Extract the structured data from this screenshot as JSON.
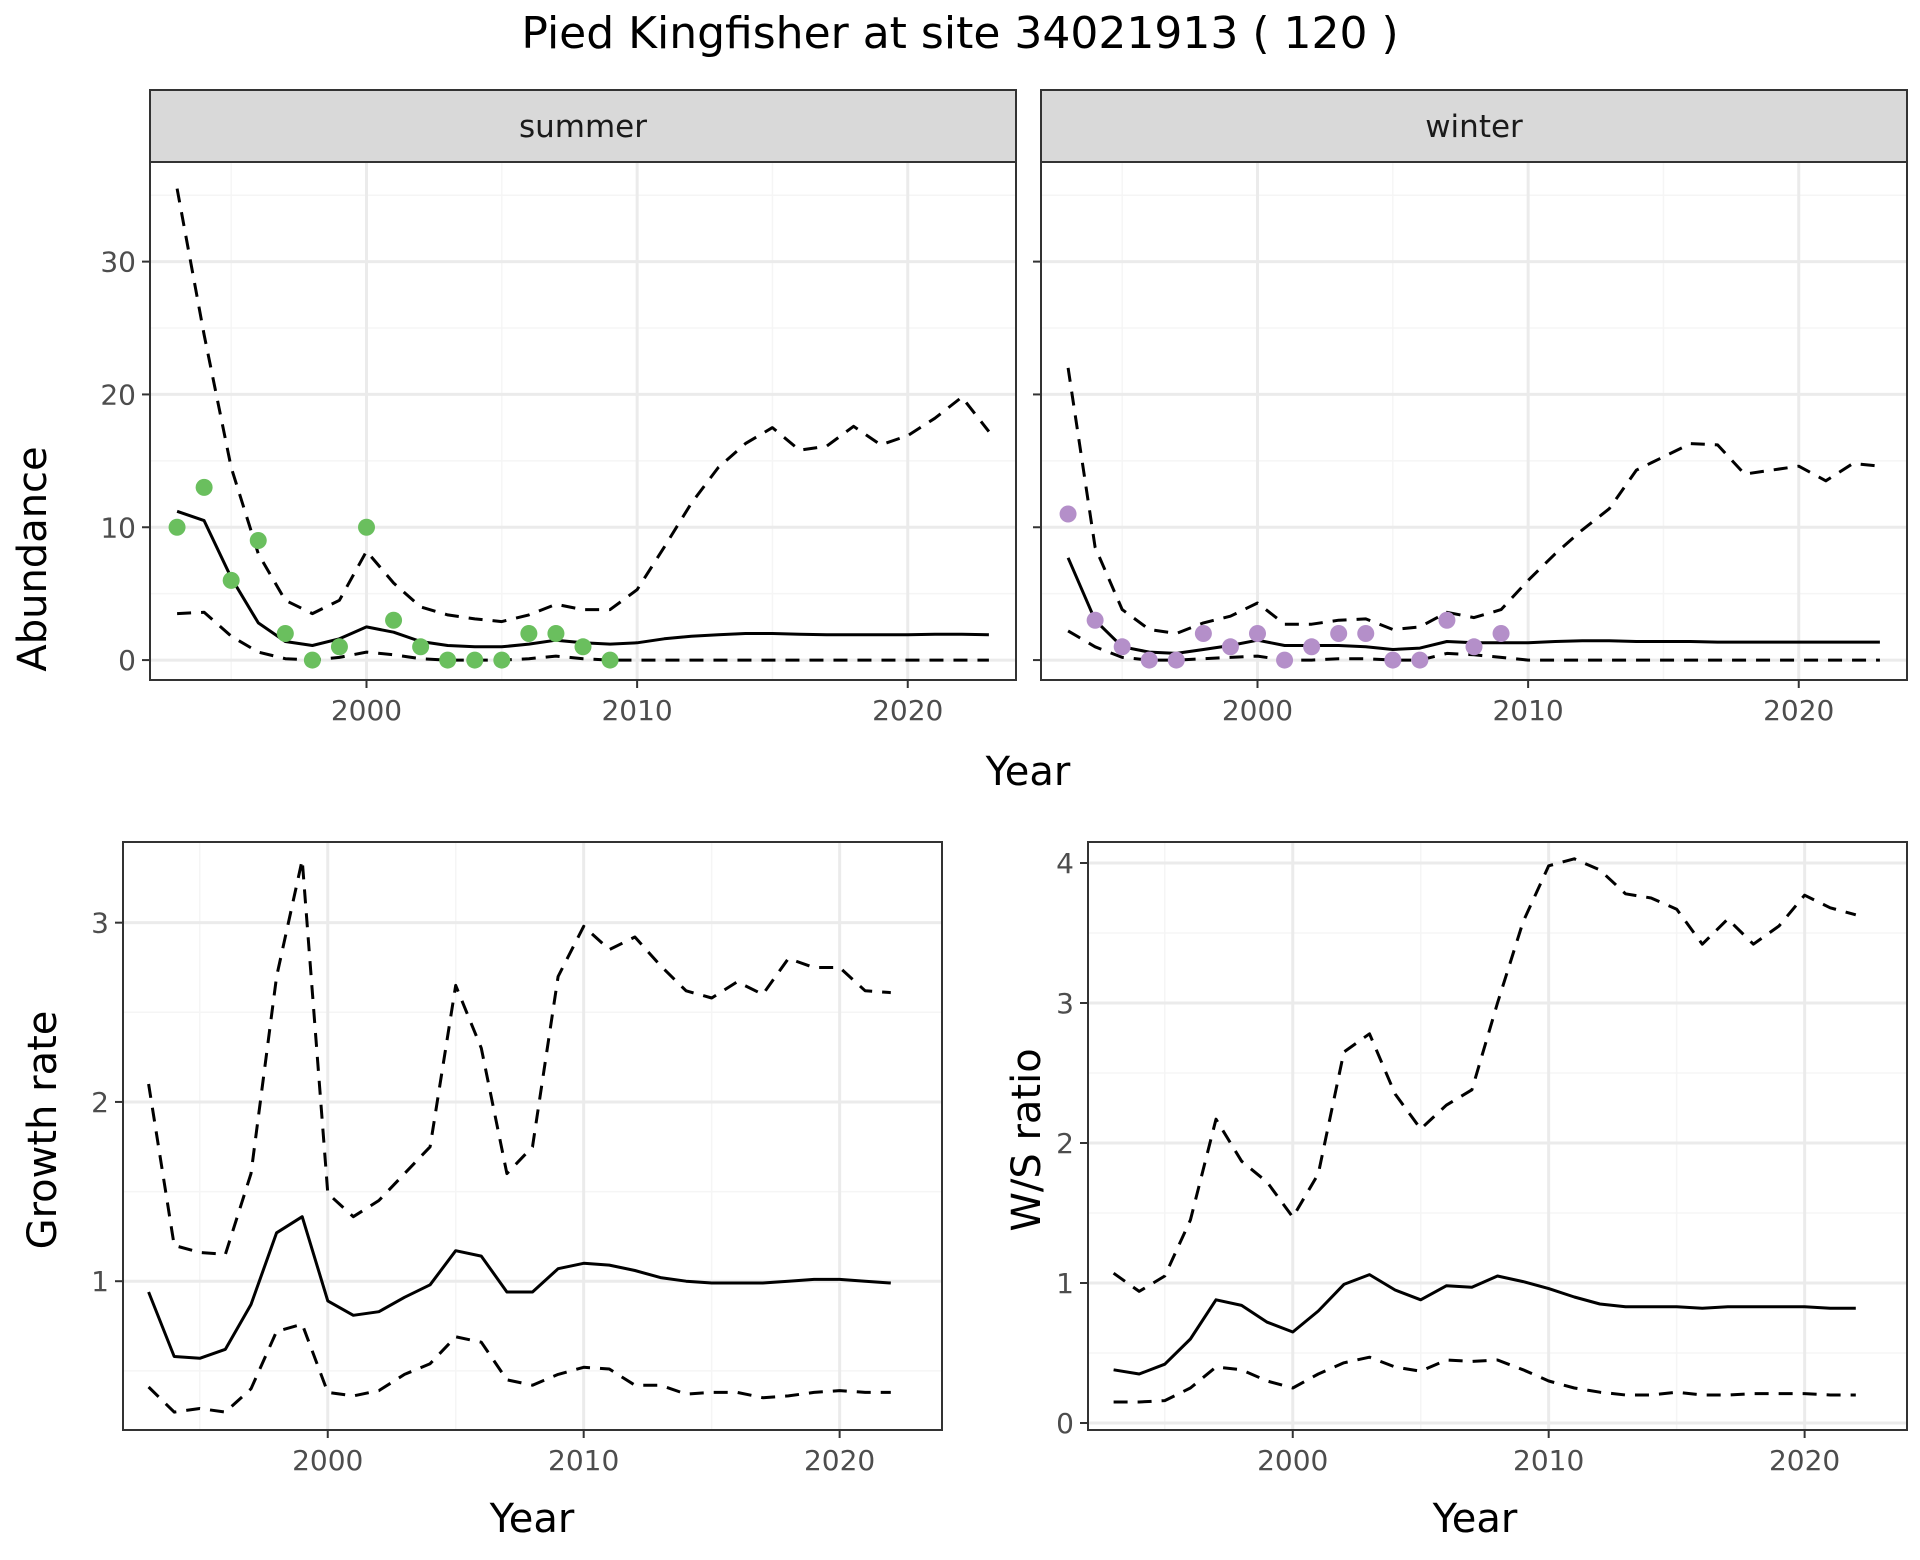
{
  "title": "Pied Kingfisher at site 34021913 ( 120 )",
  "colors": {
    "summer_points": "#6abf5e",
    "winter_points": "#b48fc9",
    "line": "#000000",
    "grid_major": "#ebebeb",
    "grid_minor": "#f5f5f5",
    "strip_bg": "#d9d9d9",
    "panel_border": "#333333"
  },
  "chart_data": [
    {
      "type": "line",
      "facet": "summer",
      "xlabel": "Year",
      "ylabel": "Abundance",
      "xlim": [
        1992,
        2024
      ],
      "ylim": [
        -1.5,
        37.5
      ],
      "x_ticks": [
        2000,
        2010,
        2020
      ],
      "y_ticks": [
        0,
        10,
        20,
        30
      ],
      "grid": true,
      "x": [
        1993,
        1994,
        1995,
        1996,
        1997,
        1998,
        1999,
        2000,
        2001,
        2002,
        2003,
        2004,
        2005,
        2006,
        2007,
        2008,
        2009,
        2010,
        2011,
        2012,
        2013,
        2014,
        2015,
        2016,
        2017,
        2018,
        2019,
        2020,
        2021,
        2022,
        2023
      ],
      "series": [
        {
          "style": "solid",
          "values": [
            11.2,
            10.5,
            6.2,
            2.8,
            1.4,
            1.1,
            1.6,
            2.5,
            2.1,
            1.4,
            1.1,
            1.0,
            1.0,
            1.2,
            1.5,
            1.3,
            1.2,
            1.3,
            1.6,
            1.8,
            1.9,
            2.0,
            2.0,
            1.95,
            1.9,
            1.9,
            1.9,
            1.9,
            1.95,
            1.95,
            1.9
          ]
        },
        {
          "style": "dashed",
          "values": [
            35.5,
            24.5,
            14.5,
            8.0,
            4.5,
            3.5,
            4.5,
            8.2,
            5.8,
            4.0,
            3.4,
            3.1,
            2.9,
            3.4,
            4.2,
            3.8,
            3.8,
            5.3,
            8.5,
            11.8,
            14.5,
            16.3,
            17.5,
            15.8,
            16.1,
            17.6,
            16.2,
            16.9,
            18.2,
            19.8,
            17.2
          ]
        },
        {
          "style": "dashed",
          "values": [
            3.5,
            3.6,
            1.8,
            0.6,
            0.1,
            0.0,
            0.2,
            0.6,
            0.4,
            0.1,
            0.0,
            0.0,
            0.0,
            0.1,
            0.3,
            0.1,
            0.0,
            0.0,
            0.0,
            0.0,
            0.0,
            0.0,
            0.0,
            0.0,
            0.0,
            0.0,
            0.0,
            0.0,
            0.0,
            0.0,
            0.0
          ]
        }
      ],
      "points": {
        "x": [
          1993,
          1994,
          1995,
          1996,
          1997,
          1998,
          1999,
          2000,
          2001,
          2002,
          2003,
          2004,
          2005,
          2006,
          2007,
          2008,
          2009
        ],
        "y": [
          10,
          13,
          6,
          9,
          2,
          0,
          1,
          10,
          3,
          1,
          0,
          0,
          0,
          2,
          2,
          1,
          0
        ]
      }
    },
    {
      "type": "line",
      "facet": "winter",
      "xlabel": "Year",
      "ylabel": "Abundance",
      "xlim": [
        1992,
        2024
      ],
      "ylim": [
        -1.5,
        37.5
      ],
      "x_ticks": [
        2000,
        2010,
        2020
      ],
      "y_ticks": [
        0,
        10,
        20,
        30
      ],
      "grid": true,
      "x": [
        1993,
        1994,
        1995,
        1996,
        1997,
        1998,
        1999,
        2000,
        2001,
        2002,
        2003,
        2004,
        2005,
        2006,
        2007,
        2008,
        2009,
        2010,
        2011,
        2012,
        2013,
        2014,
        2015,
        2016,
        2017,
        2018,
        2019,
        2020,
        2021,
        2022,
        2023
      ],
      "series": [
        {
          "style": "solid",
          "values": [
            7.7,
            3.0,
            1.0,
            0.6,
            0.5,
            0.8,
            1.1,
            1.5,
            1.1,
            1.1,
            1.1,
            1.0,
            0.8,
            0.9,
            1.4,
            1.3,
            1.3,
            1.3,
            1.4,
            1.45,
            1.45,
            1.4,
            1.4,
            1.4,
            1.35,
            1.35,
            1.35,
            1.35,
            1.35,
            1.35,
            1.35
          ]
        },
        {
          "style": "dashed",
          "values": [
            22.0,
            8.5,
            3.8,
            2.3,
            2.0,
            2.8,
            3.3,
            4.3,
            2.7,
            2.7,
            3.0,
            3.1,
            2.3,
            2.5,
            3.6,
            3.2,
            3.8,
            6.0,
            8.0,
            9.8,
            11.4,
            14.3,
            15.3,
            16.3,
            16.2,
            14.0,
            14.3,
            14.6,
            13.5,
            14.8,
            14.6
          ]
        },
        {
          "style": "dashed",
          "values": [
            2.2,
            1.0,
            0.2,
            0.0,
            0.0,
            0.1,
            0.2,
            0.3,
            0.0,
            0.0,
            0.1,
            0.1,
            0.0,
            0.0,
            0.5,
            0.4,
            0.2,
            0.0,
            0.0,
            0.0,
            0.0,
            0.0,
            0.0,
            0.0,
            0.0,
            0.0,
            0.0,
            0.0,
            0.0,
            0.0,
            0.0
          ]
        }
      ],
      "points": {
        "x": [
          1993,
          1994,
          1995,
          1996,
          1997,
          1998,
          1999,
          2000,
          2001,
          2002,
          2003,
          2004,
          2005,
          2006,
          2007,
          2008,
          2009
        ],
        "y": [
          11,
          3,
          1,
          0,
          0,
          2,
          1,
          2,
          0,
          1,
          2,
          2,
          0,
          0,
          3,
          1,
          2
        ]
      }
    },
    {
      "type": "line",
      "xlabel": "Year",
      "ylabel": "Growth rate",
      "xlim": [
        1992,
        2024
      ],
      "ylim": [
        0.17,
        3.45
      ],
      "x_ticks": [
        2000,
        2010,
        2020
      ],
      "y_ticks": [
        1,
        2,
        3
      ],
      "grid": true,
      "x": [
        1993,
        1994,
        1995,
        1996,
        1997,
        1998,
        1999,
        2000,
        2001,
        2002,
        2003,
        2004,
        2005,
        2006,
        2007,
        2008,
        2009,
        2010,
        2011,
        2012,
        2013,
        2014,
        2015,
        2016,
        2017,
        2018,
        2019,
        2020,
        2021,
        2022
      ],
      "series": [
        {
          "style": "solid",
          "values": [
            0.94,
            0.58,
            0.57,
            0.62,
            0.87,
            1.27,
            1.36,
            0.89,
            0.81,
            0.83,
            0.91,
            0.98,
            1.17,
            1.14,
            0.94,
            0.94,
            1.07,
            1.1,
            1.09,
            1.06,
            1.02,
            1.0,
            0.99,
            0.99,
            0.99,
            1.0,
            1.01,
            1.01,
            1.0,
            0.99
          ]
        },
        {
          "style": "dashed",
          "values": [
            2.1,
            1.2,
            1.16,
            1.15,
            1.6,
            2.7,
            3.35,
            1.49,
            1.36,
            1.45,
            1.6,
            1.75,
            2.65,
            2.3,
            1.6,
            1.75,
            2.7,
            2.98,
            2.85,
            2.92,
            2.76,
            2.62,
            2.58,
            2.67,
            2.6,
            2.8,
            2.75,
            2.75,
            2.62,
            2.61
          ]
        },
        {
          "style": "dashed",
          "values": [
            0.41,
            0.27,
            0.29,
            0.27,
            0.4,
            0.72,
            0.76,
            0.38,
            0.36,
            0.39,
            0.48,
            0.54,
            0.69,
            0.66,
            0.45,
            0.42,
            0.48,
            0.52,
            0.51,
            0.42,
            0.42,
            0.37,
            0.38,
            0.38,
            0.35,
            0.36,
            0.38,
            0.39,
            0.38,
            0.38
          ]
        }
      ]
    },
    {
      "type": "line",
      "xlabel": "Year",
      "ylabel": "W/S ratio",
      "xlim": [
        1992,
        2024
      ],
      "ylim": [
        -0.05,
        4.15
      ],
      "x_ticks": [
        2000,
        2010,
        2020
      ],
      "y_ticks": [
        0,
        1,
        2,
        3,
        4
      ],
      "grid": true,
      "x": [
        1993,
        1994,
        1995,
        1996,
        1997,
        1998,
        1999,
        2000,
        2001,
        2002,
        2003,
        2004,
        2005,
        2006,
        2007,
        2008,
        2009,
        2010,
        2011,
        2012,
        2013,
        2014,
        2015,
        2016,
        2017,
        2018,
        2019,
        2020,
        2021,
        2022
      ],
      "series": [
        {
          "style": "solid",
          "values": [
            0.38,
            0.35,
            0.42,
            0.6,
            0.88,
            0.84,
            0.72,
            0.65,
            0.8,
            0.99,
            1.06,
            0.95,
            0.88,
            0.98,
            0.97,
            1.05,
            1.01,
            0.96,
            0.9,
            0.85,
            0.83,
            0.83,
            0.83,
            0.82,
            0.83,
            0.83,
            0.83,
            0.83,
            0.82,
            0.82
          ]
        },
        {
          "style": "dashed",
          "values": [
            1.07,
            0.94,
            1.05,
            1.45,
            2.17,
            1.87,
            1.72,
            1.47,
            1.78,
            2.65,
            2.78,
            2.35,
            2.1,
            2.27,
            2.38,
            3.0,
            3.58,
            3.98,
            4.03,
            3.95,
            3.78,
            3.75,
            3.67,
            3.42,
            3.6,
            3.42,
            3.55,
            3.77,
            3.68,
            3.63
          ]
        },
        {
          "style": "dashed",
          "values": [
            0.15,
            0.15,
            0.16,
            0.25,
            0.4,
            0.38,
            0.3,
            0.25,
            0.35,
            0.43,
            0.47,
            0.4,
            0.37,
            0.45,
            0.44,
            0.45,
            0.38,
            0.3,
            0.25,
            0.22,
            0.2,
            0.2,
            0.22,
            0.2,
            0.2,
            0.21,
            0.21,
            0.21,
            0.2,
            0.2
          ]
        }
      ]
    }
  ],
  "facets": {
    "summer": "summer",
    "winter": "winter"
  }
}
